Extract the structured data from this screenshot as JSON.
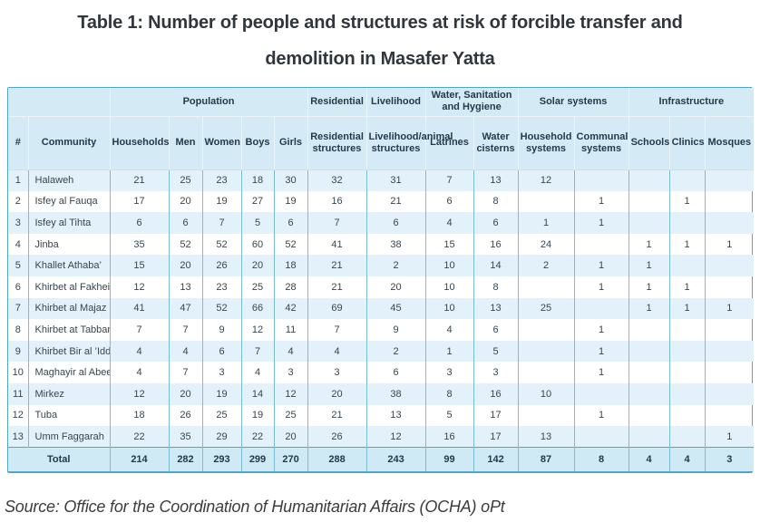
{
  "title": {
    "line1": "Table 1: Number of people and structures at risk of forcible transfer and",
    "line2": "demolition in Masafer Yatta"
  },
  "source": "Source: Office for the Coordination of Humanitarian Affairs (OCHA) oPt",
  "colors": {
    "border_teal": "#4fa7c2",
    "cell_line": "#79bed4",
    "header_bg": "#d4ebf6",
    "stripe_bg": "#e3f1fa",
    "total_bg": "#cfe9f5"
  },
  "table": {
    "group_headers": [
      {
        "label": "",
        "colspan": 2
      },
      {
        "label": "Population",
        "colspan": 5
      },
      {
        "label": "Residential",
        "colspan": 1
      },
      {
        "label": "Livelihood",
        "colspan": 1
      },
      {
        "label": "Water, Sanitation and Hygiene",
        "colspan": 2
      },
      {
        "label": "Solar systems",
        "colspan": 2
      },
      {
        "label": "Infrastructure",
        "colspan": 3
      }
    ],
    "columns": [
      "#",
      "Community",
      "Households",
      "Men",
      "Women",
      "Boys",
      "Girls",
      "Residential structures",
      "Livelihood/animal structures",
      "Latrines",
      "Water cisterns",
      "Household systems",
      "Communal systems",
      "Schools",
      "Clinics",
      "Mosques"
    ],
    "rows": [
      [
        "1",
        "Halaweh",
        "21",
        "25",
        "23",
        "18",
        "30",
        "32",
        "31",
        "7",
        "13",
        "12",
        "",
        "",
        "",
        ""
      ],
      [
        "2",
        "Isfey al Fauqa",
        "17",
        "20",
        "19",
        "27",
        "19",
        "16",
        "21",
        "6",
        "8",
        "",
        "1",
        "",
        "1",
        ""
      ],
      [
        "3",
        "Isfey al Tihta",
        "6",
        "6",
        "7",
        "5",
        "6",
        "7",
        "6",
        "4",
        "6",
        "1",
        "1",
        "",
        "",
        ""
      ],
      [
        "4",
        "Jinba",
        "35",
        "52",
        "52",
        "60",
        "52",
        "41",
        "38",
        "15",
        "16",
        "24",
        "",
        "1",
        "1",
        "1"
      ],
      [
        "5",
        "Khallet Athaba’",
        "15",
        "20",
        "26",
        "20",
        "18",
        "21",
        "2",
        "10",
        "14",
        "2",
        "1",
        "1",
        "",
        ""
      ],
      [
        "6",
        "Khirbet al Fakheit",
        "12",
        "13",
        "23",
        "25",
        "28",
        "21",
        "20",
        "10",
        "8",
        "",
        "1",
        "1",
        "1",
        ""
      ],
      [
        "7",
        "Khirbet al Majaz",
        "41",
        "47",
        "52",
        "66",
        "42",
        "69",
        "45",
        "10",
        "13",
        "25",
        "",
        "1",
        "1",
        "1"
      ],
      [
        "8",
        "Khirbet at Tabban",
        "7",
        "7",
        "9",
        "12",
        "11",
        "7",
        "9",
        "4",
        "6",
        "",
        "1",
        "",
        "",
        ""
      ],
      [
        "9",
        "Khirbet Bir al ’Idd",
        "4",
        "4",
        "6",
        "7",
        "4",
        "4",
        "2",
        "1",
        "5",
        "",
        "1",
        "",
        "",
        ""
      ],
      [
        "10",
        "Maghayir al Abeed",
        "4",
        "7",
        "3",
        "4",
        "3",
        "3",
        "6",
        "3",
        "3",
        "",
        "1",
        "",
        "",
        ""
      ],
      [
        "11",
        "Mirkez",
        "12",
        "20",
        "19",
        "14",
        "12",
        "20",
        "38",
        "8",
        "16",
        "10",
        "",
        "",
        "",
        ""
      ],
      [
        "12",
        "Tuba",
        "18",
        "26",
        "25",
        "19",
        "25",
        "21",
        "13",
        "5",
        "17",
        "",
        "1",
        "",
        "",
        ""
      ],
      [
        "13",
        "Umm Faggarah",
        "22",
        "35",
        "29",
        "22",
        "20",
        "26",
        "12",
        "16",
        "17",
        "13",
        "",
        "",
        "",
        "1"
      ]
    ],
    "total": {
      "label": "Total",
      "values": [
        "214",
        "282",
        "293",
        "299",
        "270",
        "288",
        "243",
        "99",
        "142",
        "87",
        "8",
        "4",
        "4",
        "3"
      ]
    }
  }
}
